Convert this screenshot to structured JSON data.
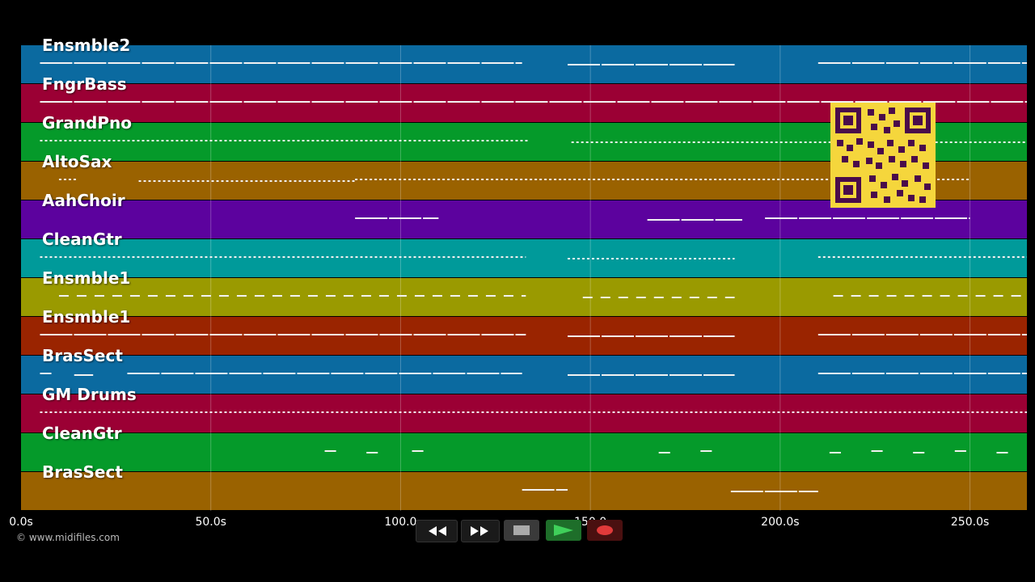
{
  "tracks": [
    {
      "name": "Ensmble2",
      "color": "#0b6aa0"
    },
    {
      "name": "FngrBass",
      "color": "#9b0034"
    },
    {
      "name": "GrandPno",
      "color": "#059a2a"
    },
    {
      "name": "AltoSax",
      "color": "#9a6200"
    },
    {
      "name": "AahChoir",
      "color": "#5c029e"
    },
    {
      "name": "CleanGtr",
      "color": "#009a9a"
    },
    {
      "name": "Ensmble1",
      "color": "#9a9a00"
    },
    {
      "name": "Ensmble1",
      "color": "#9a2400"
    },
    {
      "name": "BrasSect",
      "color": "#0b6aa0"
    },
    {
      "name": "GM Drums",
      "color": "#9b0034"
    },
    {
      "name": "CleanGtr",
      "color": "#059a2a"
    },
    {
      "name": "BrasSect",
      "color": "#9a6200"
    }
  ],
  "time_axis": {
    "ticks": [
      "0.0s",
      "50.0s",
      "100.0",
      "150.0",
      "200.0s",
      "250.0s"
    ],
    "tick_values": [
      0,
      50,
      100,
      150,
      200,
      250
    ],
    "max_seconds": 265
  },
  "copyright": "© www.midifiles.com",
  "transport": {
    "rewind": "rewind-icon",
    "fast_forward": "fast-forward-icon",
    "stop": "stop-icon",
    "play": "play-icon",
    "record": "record-icon"
  },
  "note_segments": [
    [
      [
        5,
        132
      ],
      [
        144,
        188
      ],
      [
        210,
        265
      ]
    ],
    [
      [
        5,
        265
      ]
    ],
    [
      [
        5,
        134
      ],
      [
        145,
        265
      ]
    ],
    [
      [
        10,
        15
      ],
      [
        31,
        88
      ],
      [
        88,
        250
      ]
    ],
    [
      [
        88,
        110
      ],
      [
        165,
        190
      ],
      [
        196,
        250
      ]
    ],
    [
      [
        5,
        133
      ],
      [
        144,
        188
      ],
      [
        210,
        265
      ]
    ],
    [
      [
        10,
        133
      ],
      [
        148,
        188
      ],
      [
        214,
        265
      ]
    ],
    [
      [
        5,
        133
      ],
      [
        144,
        188
      ],
      [
        210,
        265
      ]
    ],
    [
      [
        5,
        8
      ],
      [
        14,
        19
      ],
      [
        28,
        132
      ],
      [
        144,
        188
      ],
      [
        210,
        265
      ]
    ],
    [
      [
        5,
        265
      ]
    ],
    [
      [
        80,
        83
      ],
      [
        91,
        94
      ],
      [
        103,
        106
      ],
      [
        168,
        171
      ],
      [
        179,
        182
      ],
      [
        213,
        216
      ],
      [
        224,
        227
      ],
      [
        235,
        238
      ],
      [
        246,
        249
      ],
      [
        257,
        260
      ]
    ],
    [
      [
        132,
        144
      ],
      [
        187,
        210
      ]
    ]
  ]
}
